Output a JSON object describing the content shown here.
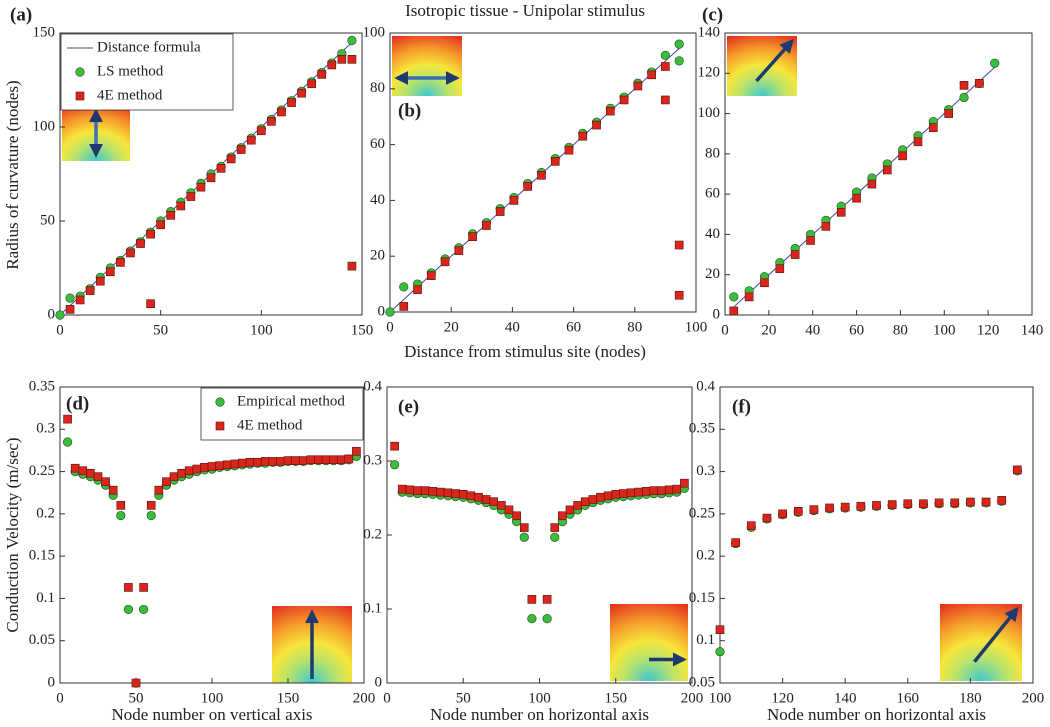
{
  "figure": {
    "title": "Isotropic tissue - Unipolar stimulus",
    "top_xlabel": "Distance from stimulus site (nodes)",
    "top_ylabel": "Radius of curvature (nodes)",
    "bottom_ylabel": "Conduction Velocity (m/sec)"
  },
  "chart_data": [
    {
      "type": "scatter",
      "label": "(a)",
      "legend": "upper left",
      "xlim": [
        0,
        150
      ],
      "xticks": [
        0,
        50,
        100,
        150
      ],
      "ylim": [
        0,
        150
      ],
      "yticks": [
        0,
        50,
        100,
        150
      ],
      "series": [
        {
          "name": "Distance formula",
          "kind": "line",
          "color": "#3b49a0",
          "x": [
            0,
            147
          ],
          "values": [
            0,
            147
          ]
        },
        {
          "name": "LS method",
          "kind": "circle",
          "color": "#3dbb3d",
          "x": [
            0,
            5,
            10,
            15,
            20,
            25,
            30,
            35,
            40,
            45,
            50,
            55,
            60,
            65,
            70,
            75,
            80,
            85,
            90,
            95,
            100,
            105,
            110,
            115,
            120,
            125,
            130,
            135,
            140,
            145
          ],
          "values": [
            0,
            9,
            10,
            14,
            20,
            25,
            29,
            34,
            39,
            44,
            50,
            55,
            60,
            65,
            70,
            75,
            79,
            84,
            89,
            94,
            99,
            104,
            109,
            114,
            119,
            124,
            129,
            134,
            139,
            146
          ]
        },
        {
          "name": "4E method",
          "kind": "square",
          "color": "#d9261c",
          "x": [
            5,
            10,
            15,
            20,
            25,
            30,
            35,
            40,
            45,
            45,
            50,
            55,
            60,
            65,
            70,
            75,
            80,
            85,
            90,
            95,
            100,
            105,
            110,
            115,
            120,
            125,
            130,
            135,
            140,
            145,
            145
          ],
          "values": [
            3,
            8,
            13,
            18,
            23,
            28,
            33,
            38,
            43,
            6,
            48,
            53,
            58,
            63,
            68,
            73,
            78,
            83,
            88,
            93,
            98,
            103,
            108,
            113,
            118,
            123,
            128,
            133,
            136,
            136,
            26
          ]
        }
      ]
    },
    {
      "type": "scatter",
      "label": "(b)",
      "xlim": [
        0,
        100
      ],
      "xticks": [
        0,
        20,
        40,
        60,
        80,
        100
      ],
      "ylim": [
        0,
        100
      ],
      "yticks": [
        0,
        20,
        40,
        60,
        80,
        100
      ],
      "series": [
        {
          "kind": "line",
          "color": "#3b49a0",
          "x": [
            0,
            95
          ],
          "values": [
            0,
            95
          ]
        },
        {
          "kind": "circle",
          "color": "#3dbb3d",
          "x": [
            0,
            4.5,
            9,
            13.5,
            18,
            22.5,
            27,
            31.5,
            36,
            40.5,
            45,
            49.5,
            54,
            58.5,
            63,
            67.5,
            72,
            76.5,
            81,
            85.5,
            90,
            94.5,
            94.5
          ],
          "values": [
            0,
            9,
            10,
            14,
            19,
            23,
            28,
            32,
            37,
            41,
            46,
            50,
            55,
            59,
            64,
            68,
            73,
            77,
            82,
            86,
            92,
            96,
            90
          ]
        },
        {
          "kind": "square",
          "color": "#d9261c",
          "x": [
            4.5,
            9,
            13.5,
            18,
            22.5,
            27,
            31.5,
            36,
            40.5,
            45,
            49.5,
            54,
            58.5,
            63,
            67.5,
            72,
            76.5,
            81,
            85.5,
            90,
            90,
            94.5,
            94.5
          ],
          "values": [
            2,
            8,
            13,
            18,
            22,
            27,
            31,
            36,
            40,
            45,
            49,
            54,
            58,
            63,
            67,
            72,
            76,
            81,
            85,
            88,
            76,
            24,
            6
          ]
        }
      ]
    },
    {
      "type": "scatter",
      "label": "(c)",
      "xlim": [
        0,
        140
      ],
      "xticks": [
        0,
        20,
        40,
        60,
        80,
        100,
        120,
        140
      ],
      "ylim": [
        0,
        140
      ],
      "yticks": [
        0,
        20,
        40,
        60,
        80,
        100,
        120,
        140
      ],
      "series": [
        {
          "kind": "line",
          "color": "#3b49a0",
          "x": [
            4,
            123
          ],
          "values": [
            4,
            123
          ]
        },
        {
          "kind": "circle",
          "color": "#3dbb3d",
          "x": [
            4,
            11,
            18,
            25,
            32,
            39,
            46,
            53,
            60,
            67,
            74,
            81,
            88,
            95,
            102,
            109,
            116,
            123
          ],
          "values": [
            9,
            12,
            19,
            26,
            33,
            40,
            47,
            54,
            61,
            68,
            75,
            82,
            89,
            96,
            102,
            108,
            115,
            125
          ]
        },
        {
          "kind": "square",
          "color": "#d9261c",
          "x": [
            4,
            11,
            18,
            25,
            32,
            39,
            46,
            53,
            60,
            67,
            74,
            81,
            88,
            95,
            102,
            109,
            116
          ],
          "values": [
            2,
            9,
            16,
            23,
            30,
            37,
            44,
            51,
            58,
            65,
            72,
            79,
            86,
            93,
            100,
            114,
            115
          ]
        }
      ]
    },
    {
      "type": "scatter",
      "label": "(d)",
      "legend": "upper right",
      "xlabel": "Node number on vertical axis",
      "xlim": [
        0,
        200
      ],
      "xticks": [
        0,
        50,
        100,
        150,
        200
      ],
      "ylim": [
        0,
        0.35
      ],
      "yticks": [
        0,
        0.05,
        0.1,
        0.15,
        0.2,
        0.25,
        0.3,
        0.35
      ],
      "series": [
        {
          "name": "Empirical method",
          "kind": "circle",
          "color": "#3dbb3d",
          "x": [
            5,
            10,
            15,
            20,
            25,
            30,
            35,
            40,
            45,
            50,
            55,
            60,
            65,
            70,
            75,
            80,
            85,
            90,
            95,
            100,
            105,
            110,
            115,
            120,
            125,
            130,
            135,
            140,
            145,
            150,
            155,
            160,
            165,
            170,
            175,
            180,
            185,
            190,
            195
          ],
          "values": [
            0.285,
            0.25,
            0.247,
            0.244,
            0.24,
            0.234,
            0.222,
            0.198,
            0.087,
            0,
            0.087,
            0.198,
            0.222,
            0.234,
            0.24,
            0.244,
            0.247,
            0.25,
            0.252,
            0.253,
            0.255,
            0.256,
            0.257,
            0.258,
            0.259,
            0.26,
            0.26,
            0.261,
            0.261,
            0.262,
            0.262,
            0.262,
            0.263,
            0.263,
            0.263,
            0.263,
            0.263,
            0.264,
            0.268
          ]
        },
        {
          "name": "4E method",
          "kind": "square",
          "color": "#d9261c",
          "x": [
            5,
            10,
            15,
            20,
            25,
            30,
            35,
            40,
            45,
            50,
            55,
            60,
            65,
            70,
            75,
            80,
            85,
            90,
            95,
            100,
            105,
            110,
            115,
            120,
            125,
            130,
            135,
            140,
            145,
            150,
            155,
            160,
            165,
            170,
            175,
            180,
            185,
            190,
            195
          ],
          "values": [
            0.312,
            0.254,
            0.251,
            0.248,
            0.244,
            0.238,
            0.228,
            0.21,
            0.113,
            0,
            0.113,
            0.21,
            0.228,
            0.238,
            0.244,
            0.248,
            0.251,
            0.253,
            0.255,
            0.256,
            0.257,
            0.258,
            0.259,
            0.26,
            0.261,
            0.261,
            0.262,
            0.262,
            0.262,
            0.263,
            0.263,
            0.263,
            0.264,
            0.264,
            0.264,
            0.264,
            0.264,
            0.265,
            0.274
          ]
        }
      ]
    },
    {
      "type": "scatter",
      "label": "(e)",
      "xlabel": "Node number on horizontal axis",
      "xlim": [
        0,
        200
      ],
      "xticks": [
        0,
        50,
        100,
        150,
        200
      ],
      "ylim": [
        0,
        0.4
      ],
      "yticks": [
        0,
        0.1,
        0.2,
        0.3,
        0.4
      ],
      "series": [
        {
          "kind": "circle",
          "color": "#3dbb3d",
          "x": [
            5,
            10,
            15,
            20,
            25,
            30,
            35,
            40,
            45,
            50,
            55,
            60,
            65,
            70,
            75,
            80,
            85,
            90,
            95,
            105,
            110,
            115,
            120,
            125,
            130,
            135,
            140,
            145,
            150,
            155,
            160,
            165,
            170,
            175,
            180,
            185,
            190,
            195
          ],
          "values": [
            0.295,
            0.258,
            0.257,
            0.256,
            0.256,
            0.255,
            0.254,
            0.253,
            0.252,
            0.251,
            0.249,
            0.247,
            0.244,
            0.24,
            0.234,
            0.228,
            0.218,
            0.197,
            0.087,
            0.087,
            0.197,
            0.218,
            0.228,
            0.234,
            0.24,
            0.244,
            0.247,
            0.249,
            0.251,
            0.252,
            0.253,
            0.254,
            0.255,
            0.256,
            0.256,
            0.257,
            0.258,
            0.263
          ]
        },
        {
          "kind": "square",
          "color": "#d9261c",
          "x": [
            5,
            10,
            15,
            20,
            25,
            30,
            35,
            40,
            45,
            50,
            55,
            60,
            65,
            70,
            75,
            80,
            85,
            90,
            95,
            105,
            110,
            115,
            120,
            125,
            130,
            135,
            140,
            145,
            150,
            155,
            160,
            165,
            170,
            175,
            180,
            185,
            190,
            195
          ],
          "values": [
            0.32,
            0.262,
            0.261,
            0.26,
            0.26,
            0.259,
            0.258,
            0.257,
            0.256,
            0.255,
            0.253,
            0.251,
            0.248,
            0.245,
            0.24,
            0.234,
            0.226,
            0.21,
            0.113,
            0.113,
            0.21,
            0.226,
            0.234,
            0.24,
            0.245,
            0.248,
            0.251,
            0.253,
            0.255,
            0.256,
            0.257,
            0.258,
            0.259,
            0.26,
            0.26,
            0.261,
            0.262,
            0.27
          ]
        }
      ]
    },
    {
      "type": "scatter",
      "label": "(f)",
      "xlabel": "Node number on horizontal axis",
      "xlim": [
        100,
        200
      ],
      "xticks": [
        100,
        120,
        140,
        160,
        180,
        200
      ],
      "ylim": [
        0.05,
        0.4
      ],
      "yticks": [
        0.05,
        0.1,
        0.15,
        0.2,
        0.25,
        0.3,
        0.35,
        0.4
      ],
      "series": [
        {
          "kind": "circle",
          "color": "#3dbb3d",
          "x": [
            100,
            105,
            110,
            115,
            120,
            125,
            130,
            135,
            140,
            145,
            150,
            155,
            160,
            165,
            170,
            175,
            180,
            185,
            190,
            195
          ],
          "values": [
            0.087,
            0.215,
            0.234,
            0.244,
            0.249,
            0.252,
            0.254,
            0.256,
            0.257,
            0.258,
            0.259,
            0.26,
            0.261,
            0.261,
            0.262,
            0.262,
            0.263,
            0.263,
            0.265,
            0.301
          ]
        },
        {
          "kind": "square",
          "color": "#d9261c",
          "x": [
            100,
            105,
            110,
            115,
            120,
            125,
            130,
            135,
            140,
            145,
            150,
            155,
            160,
            165,
            170,
            175,
            180,
            185,
            190,
            195
          ],
          "values": [
            0.113,
            0.216,
            0.236,
            0.245,
            0.25,
            0.253,
            0.255,
            0.257,
            0.258,
            0.259,
            0.26,
            0.261,
            0.262,
            0.262,
            0.263,
            0.263,
            0.264,
            0.264,
            0.266,
            0.302
          ]
        }
      ]
    }
  ]
}
